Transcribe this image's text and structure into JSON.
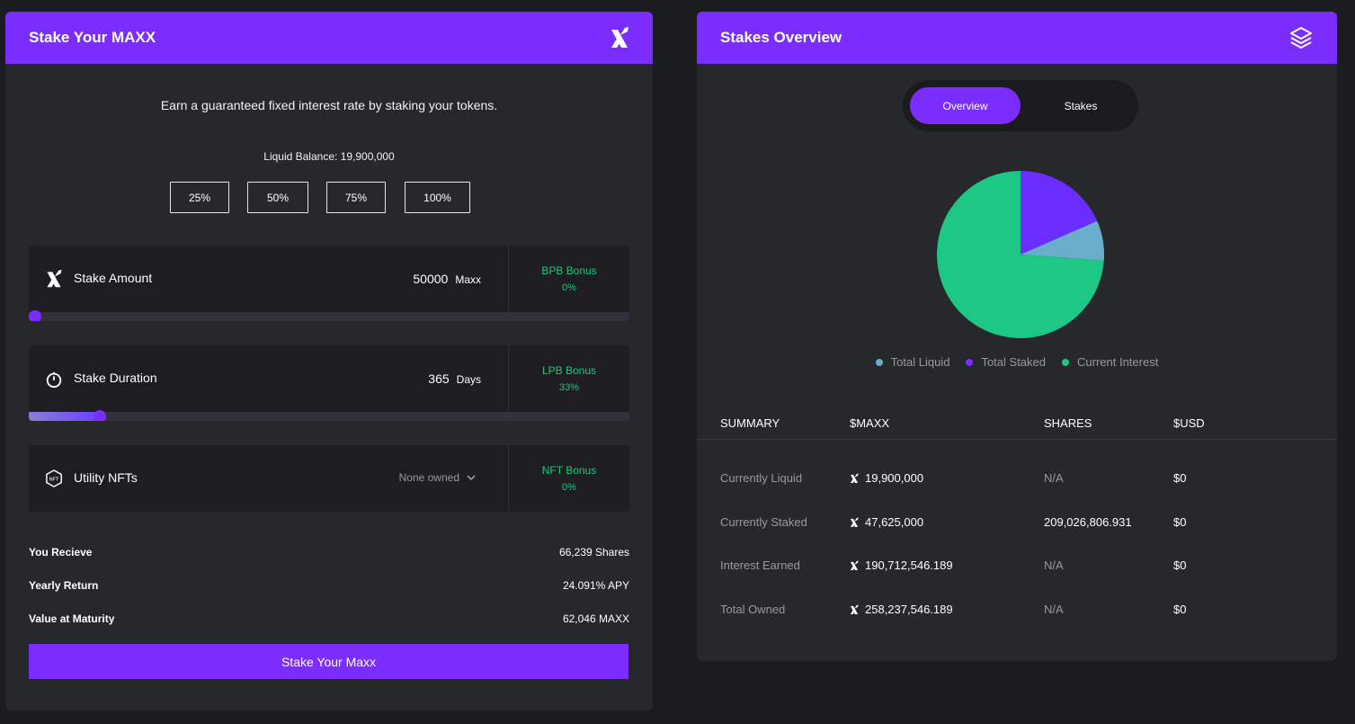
{
  "stake_card": {
    "title": "Stake Your MAXX",
    "earn_text": "Earn a guaranteed fixed interest rate by staking your tokens.",
    "liquid_balance": "Liquid Balance: 19,900,000",
    "percent_buttons": [
      "25%",
      "50%",
      "75%",
      "100%"
    ],
    "amount": {
      "label": "Stake Amount",
      "value": "50000",
      "unit": "Maxx",
      "slider_fraction": 0.01,
      "bonus_label": "BPB Bonus",
      "bonus_value": "0%"
    },
    "duration": {
      "label": "Stake Duration",
      "value": "365",
      "unit": "Days",
      "slider_fraction": 0.118,
      "bonus_label": "LPB Bonus",
      "bonus_value": "33%"
    },
    "nfts": {
      "label": "Utility NFTs",
      "select_value": "None owned",
      "bonus_label": "NFT Bonus",
      "bonus_value": "0%"
    },
    "results": [
      {
        "label": "You Recieve",
        "value": "66,239 Shares"
      },
      {
        "label": "Yearly Return",
        "value": "24.091% APY"
      },
      {
        "label": "Value at Maturity",
        "value": "62,046 MAXX"
      }
    ],
    "stake_button": "Stake Your Maxx"
  },
  "overview_card": {
    "title": "Stakes Overview",
    "tabs": [
      "Overview",
      "Stakes"
    ],
    "legend": [
      {
        "name": "Total Liquid",
        "color": "#6aaecb"
      },
      {
        "name": "Total Staked",
        "color": "#7b2cff"
      },
      {
        "name": "Current Interest",
        "color": "#1dc784"
      }
    ],
    "summary_headers": [
      "SUMMARY",
      "$MAXX",
      "SHARES",
      "$USD"
    ],
    "summary_rows": [
      {
        "label": "Currently Liquid",
        "maxx": "19,900,000",
        "shares": "N/A",
        "usd": "$0"
      },
      {
        "label": "Currently Staked",
        "maxx": "47,625,000",
        "shares": "209,026,806.931",
        "usd": "$0"
      },
      {
        "label": "Interest Earned",
        "maxx": "190,712,546.189",
        "shares": "N/A",
        "usd": "$0"
      },
      {
        "label": "Total Owned",
        "maxx": "258,237,546.189",
        "shares": "N/A",
        "usd": "$0"
      }
    ]
  },
  "chart_data": {
    "type": "pie",
    "slices": [
      {
        "name": "Total Staked",
        "value": 47625000,
        "color": "#6a2cff"
      },
      {
        "name": "Total Liquid",
        "value": 19900000,
        "color": "#6aaecb"
      },
      {
        "name": "Current Interest",
        "value": 190712546.189,
        "color": "#1dc784"
      }
    ]
  }
}
